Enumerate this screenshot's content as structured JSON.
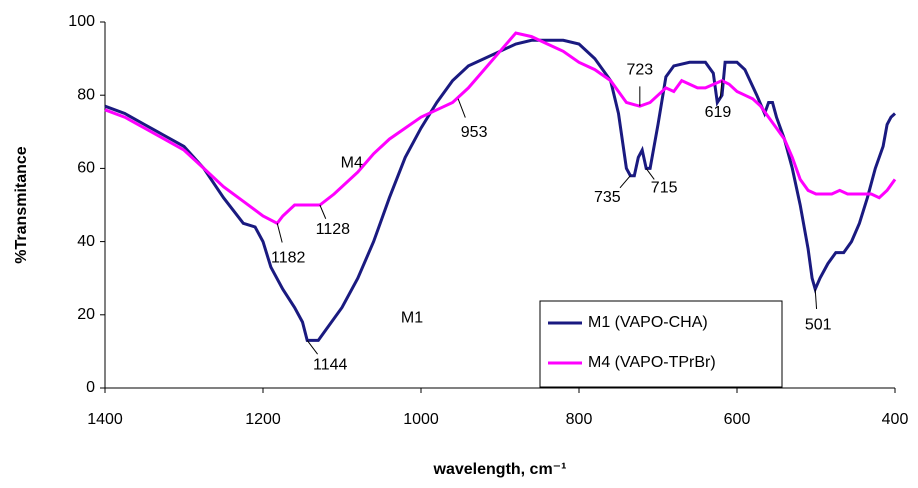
{
  "chart_data": {
    "type": "line",
    "x_label": "wavelength, cm⁻¹",
    "y_label": "%Transmitance",
    "xlim": [
      1400,
      400
    ],
    "xticks": [
      1400,
      1200,
      1000,
      800,
      600,
      400
    ],
    "ylim": [
      0,
      100
    ],
    "yticks": [
      0,
      20,
      40,
      60,
      80,
      100
    ],
    "grid": false,
    "legend": "lower-right",
    "series": [
      {
        "name": "M1 (VAPO-CHA)",
        "color": "#1a1a80",
        "x": [
          1400,
          1375,
          1350,
          1325,
          1300,
          1275,
          1250,
          1225,
          1210,
          1200,
          1190,
          1175,
          1160,
          1150,
          1144,
          1130,
          1120,
          1100,
          1080,
          1060,
          1040,
          1020,
          1000,
          980,
          960,
          940,
          920,
          900,
          880,
          860,
          840,
          820,
          800,
          780,
          760,
          750,
          740,
          735,
          730,
          725,
          720,
          715,
          710,
          700,
          690,
          680,
          660,
          640,
          630,
          625,
          619,
          615,
          600,
          590,
          575,
          565,
          560,
          555,
          550,
          540,
          530,
          520,
          510,
          505,
          501,
          495,
          485,
          475,
          465,
          455,
          445,
          435,
          425,
          415,
          410,
          405,
          400
        ],
        "values": [
          77,
          75,
          72,
          69,
          66,
          60,
          52,
          45,
          44,
          40,
          33,
          27,
          22,
          18,
          13,
          13,
          16,
          22,
          30,
          40,
          52,
          63,
          71,
          78,
          84,
          88,
          90,
          92,
          94,
          95,
          95,
          95,
          94,
          90,
          84,
          75,
          60,
          58,
          58,
          63,
          65,
          60,
          60,
          72,
          85,
          88,
          89,
          89,
          86,
          78,
          80,
          89,
          89,
          87,
          80,
          75,
          78,
          78,
          74,
          68,
          60,
          50,
          38,
          30,
          27,
          30,
          34,
          37,
          37,
          40,
          45,
          52,
          60,
          66,
          72,
          74,
          75
        ]
      },
      {
        "name": "M4 (VAPO-TPrBr)",
        "color": "#ff00ff",
        "x": [
          1400,
          1375,
          1350,
          1325,
          1300,
          1275,
          1250,
          1225,
          1200,
          1182,
          1175,
          1160,
          1140,
          1128,
          1110,
          1080,
          1060,
          1040,
          1020,
          1000,
          980,
          960,
          940,
          920,
          900,
          880,
          860,
          840,
          820,
          800,
          780,
          760,
          740,
          723,
          710,
          700,
          690,
          680,
          670,
          660,
          650,
          640,
          619,
          610,
          600,
          590,
          580,
          570,
          560,
          550,
          540,
          530,
          520,
          510,
          500,
          490,
          480,
          470,
          460,
          450,
          440,
          430,
          420,
          410,
          400
        ],
        "values": [
          76,
          74,
          71,
          68,
          65,
          60,
          55,
          51,
          47,
          45,
          47,
          50,
          50,
          50,
          53,
          59,
          64,
          68,
          71,
          74,
          76,
          78,
          82,
          87,
          92,
          97,
          96,
          94,
          92,
          89,
          87,
          84,
          78,
          77,
          78,
          80,
          82,
          81,
          84,
          83,
          82,
          82,
          84,
          83,
          81,
          80,
          79,
          77,
          74,
          71,
          68,
          63,
          57,
          54,
          53,
          53,
          53,
          54,
          53,
          53,
          53,
          53,
          52,
          54,
          57
        ]
      }
    ],
    "annotations": [
      {
        "label": "1144",
        "x": 1144,
        "y": 13
      },
      {
        "label": "1182",
        "x": 1182,
        "y": 45
      },
      {
        "label": "1128",
        "x": 1128,
        "y": 50
      },
      {
        "label": "953",
        "x": 953,
        "y": 79
      },
      {
        "label": "735",
        "x": 735,
        "y": 58
      },
      {
        "label": "715",
        "x": 715,
        "y": 60
      },
      {
        "label": "723",
        "x": 723,
        "y": 77
      },
      {
        "label": "619",
        "x": 619,
        "y": 84
      },
      {
        "label": "501",
        "x": 501,
        "y": 27
      },
      {
        "label": "M1",
        "x": 1100,
        "y": 22
      },
      {
        "label": "M4",
        "x": 1080,
        "y": 59
      }
    ]
  }
}
